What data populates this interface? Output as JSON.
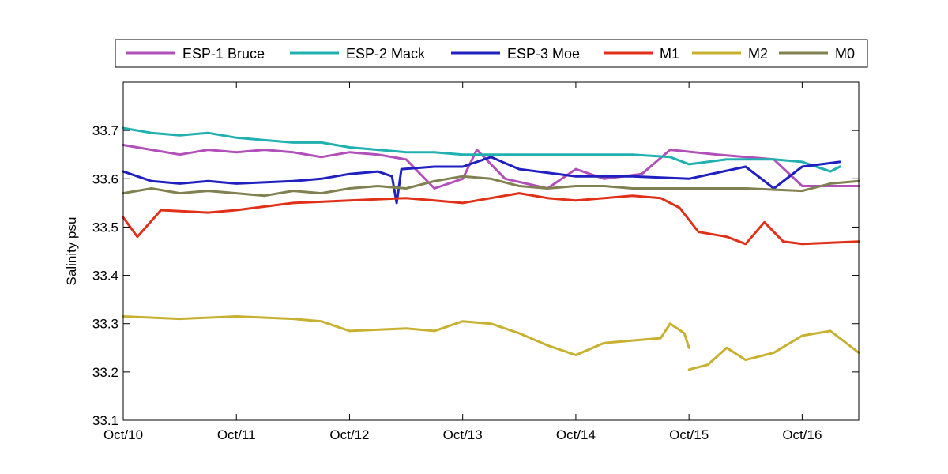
{
  "chart_data": {
    "type": "line",
    "title": "",
    "xlabel": "",
    "ylabel": "Salinity psu",
    "ylim": [
      33.1,
      33.8
    ],
    "xlim": [
      "2012-10-10 00:00",
      "2012-10-16 12:00"
    ],
    "x_ticks": [
      "Oct/10",
      "Oct/11",
      "Oct/12",
      "Oct/13",
      "Oct/14",
      "Oct/15",
      "Oct/16"
    ],
    "y_ticks": [
      33.1,
      33.2,
      33.3,
      33.4,
      33.5,
      33.6,
      33.7
    ],
    "grid": false,
    "legend": "top-outside",
    "series": [
      {
        "name": "ESP-1 Bruce",
        "color": "#b050b8",
        "points": [
          [
            "2012-10-10 00:00",
            33.67
          ],
          [
            "2012-10-10 06:00",
            33.66
          ],
          [
            "2012-10-10 12:00",
            33.65
          ],
          [
            "2012-10-10 18:00",
            33.66
          ],
          [
            "2012-10-11 00:00",
            33.655
          ],
          [
            "2012-10-11 06:00",
            33.66
          ],
          [
            "2012-10-11 12:00",
            33.655
          ],
          [
            "2012-10-11 18:00",
            33.645
          ],
          [
            "2012-10-12 00:00",
            33.655
          ],
          [
            "2012-10-12 06:00",
            33.65
          ],
          [
            "2012-10-12 12:00",
            33.64
          ],
          [
            "2012-10-12 18:00",
            33.58
          ],
          [
            "2012-10-13 00:00",
            33.6
          ],
          [
            "2012-10-13 03:00",
            33.66
          ],
          [
            "2012-10-13 09:00",
            33.6
          ],
          [
            "2012-10-13 18:00",
            33.58
          ],
          [
            "2012-10-14 00:00",
            33.62
          ],
          [
            "2012-10-14 06:00",
            33.6
          ],
          [
            "2012-10-14 14:00",
            33.61
          ],
          [
            "2012-10-14 20:00",
            33.66
          ],
          [
            "2012-10-15 06:00",
            33.65
          ],
          [
            "2012-10-15 18:00",
            33.64
          ],
          [
            "2012-10-16 00:00",
            33.585
          ],
          [
            "2012-10-16 12:00",
            33.585
          ]
        ]
      },
      {
        "name": "ESP-2 Mack",
        "color": "#20b0b0",
        "points": [
          [
            "2012-10-10 00:00",
            33.705
          ],
          [
            "2012-10-10 06:00",
            33.695
          ],
          [
            "2012-10-10 12:00",
            33.69
          ],
          [
            "2012-10-10 18:00",
            33.695
          ],
          [
            "2012-10-11 00:00",
            33.685
          ],
          [
            "2012-10-11 06:00",
            33.68
          ],
          [
            "2012-10-11 12:00",
            33.675
          ],
          [
            "2012-10-11 18:00",
            33.675
          ],
          [
            "2012-10-12 00:00",
            33.665
          ],
          [
            "2012-10-12 06:00",
            33.66
          ],
          [
            "2012-10-12 12:00",
            33.655
          ],
          [
            "2012-10-12 18:00",
            33.655
          ],
          [
            "2012-10-13 00:00",
            33.65
          ],
          [
            "2012-10-13 12:00",
            33.65
          ],
          [
            "2012-10-14 00:00",
            33.65
          ],
          [
            "2012-10-14 12:00",
            33.65
          ],
          [
            "2012-10-14 20:00",
            33.645
          ],
          [
            "2012-10-15 00:00",
            33.63
          ],
          [
            "2012-10-15 08:00",
            33.64
          ],
          [
            "2012-10-15 18:00",
            33.64
          ],
          [
            "2012-10-16 00:00",
            33.635
          ],
          [
            "2012-10-16 06:00",
            33.615
          ],
          [
            "2012-10-16 08:00",
            33.625
          ]
        ]
      },
      {
        "name": "ESP-3 Moe",
        "color": "#2020c0",
        "points": [
          [
            "2012-10-10 00:00",
            33.615
          ],
          [
            "2012-10-10 06:00",
            33.595
          ],
          [
            "2012-10-10 12:00",
            33.59
          ],
          [
            "2012-10-10 18:00",
            33.595
          ],
          [
            "2012-10-11 00:00",
            33.59
          ],
          [
            "2012-10-11 12:00",
            33.595
          ],
          [
            "2012-10-11 18:00",
            33.6
          ],
          [
            "2012-10-12 00:00",
            33.61
          ],
          [
            "2012-10-12 06:00",
            33.615
          ],
          [
            "2012-10-12 09:00",
            33.605
          ],
          [
            "2012-10-12 10:00",
            33.55
          ],
          [
            "2012-10-12 11:00",
            33.62
          ],
          [
            "2012-10-12 18:00",
            33.625
          ],
          [
            "2012-10-13 00:00",
            33.625
          ],
          [
            "2012-10-13 06:00",
            33.645
          ],
          [
            "2012-10-13 12:00",
            33.62
          ],
          [
            "2012-10-14 00:00",
            33.605
          ],
          [
            "2012-10-14 12:00",
            33.605
          ],
          [
            "2012-10-15 00:00",
            33.6
          ],
          [
            "2012-10-15 12:00",
            33.625
          ],
          [
            "2012-10-15 18:00",
            33.58
          ],
          [
            "2012-10-16 00:00",
            33.625
          ],
          [
            "2012-10-16 08:00",
            33.635
          ]
        ]
      },
      {
        "name": "M1",
        "color": "#e03018",
        "points": [
          [
            "2012-10-10 00:00",
            33.52
          ],
          [
            "2012-10-10 03:00",
            33.48
          ],
          [
            "2012-10-10 08:00",
            33.535
          ],
          [
            "2012-10-10 18:00",
            33.53
          ],
          [
            "2012-10-11 00:00",
            33.535
          ],
          [
            "2012-10-11 12:00",
            33.55
          ],
          [
            "2012-10-12 00:00",
            33.555
          ],
          [
            "2012-10-12 12:00",
            33.56
          ],
          [
            "2012-10-12 18:00",
            33.555
          ],
          [
            "2012-10-13 00:00",
            33.55
          ],
          [
            "2012-10-13 06:00",
            33.56
          ],
          [
            "2012-10-13 12:00",
            33.57
          ],
          [
            "2012-10-13 18:00",
            33.56
          ],
          [
            "2012-10-14 00:00",
            33.555
          ],
          [
            "2012-10-14 12:00",
            33.565
          ],
          [
            "2012-10-14 18:00",
            33.56
          ],
          [
            "2012-10-14 22:00",
            33.54
          ],
          [
            "2012-10-15 02:00",
            33.49
          ],
          [
            "2012-10-15 08:00",
            33.48
          ],
          [
            "2012-10-15 12:00",
            33.465
          ],
          [
            "2012-10-15 16:00",
            33.51
          ],
          [
            "2012-10-15 20:00",
            33.47
          ],
          [
            "2012-10-16 00:00",
            33.465
          ],
          [
            "2012-10-16 12:00",
            33.47
          ]
        ]
      },
      {
        "name": "M2",
        "color": "#c8b030",
        "points": [
          [
            "2012-10-10 00:00",
            33.315
          ],
          [
            "2012-10-10 12:00",
            33.31
          ],
          [
            "2012-10-11 00:00",
            33.315
          ],
          [
            "2012-10-11 12:00",
            33.31
          ],
          [
            "2012-10-11 18:00",
            33.305
          ],
          [
            "2012-10-12 00:00",
            33.285
          ],
          [
            "2012-10-12 12:00",
            33.29
          ],
          [
            "2012-10-12 18:00",
            33.285
          ],
          [
            "2012-10-13 00:00",
            33.305
          ],
          [
            "2012-10-13 06:00",
            33.3
          ],
          [
            "2012-10-13 12:00",
            33.28
          ],
          [
            "2012-10-13 18:00",
            33.255
          ],
          [
            "2012-10-14 00:00",
            33.235
          ],
          [
            "2012-10-14 06:00",
            33.26
          ],
          [
            "2012-10-14 12:00",
            33.265
          ],
          [
            "2012-10-14 18:00",
            33.27
          ],
          [
            "2012-10-14 20:00",
            33.3
          ],
          [
            "2012-10-14 23:00",
            33.28
          ],
          [
            "2012-10-15 00:00",
            33.25
          ],
          null,
          [
            "2012-10-15 00:00",
            33.205
          ],
          [
            "2012-10-15 04:00",
            33.215
          ],
          [
            "2012-10-15 08:00",
            33.25
          ],
          [
            "2012-10-15 12:00",
            33.225
          ],
          [
            "2012-10-15 18:00",
            33.24
          ],
          [
            "2012-10-16 00:00",
            33.275
          ],
          [
            "2012-10-16 06:00",
            33.285
          ],
          [
            "2012-10-16 12:00",
            33.24
          ]
        ]
      },
      {
        "name": "M0",
        "color": "#808050",
        "points": [
          [
            "2012-10-10 00:00",
            33.57
          ],
          [
            "2012-10-10 06:00",
            33.58
          ],
          [
            "2012-10-10 12:00",
            33.57
          ],
          [
            "2012-10-10 18:00",
            33.575
          ],
          [
            "2012-10-11 00:00",
            33.57
          ],
          [
            "2012-10-11 06:00",
            33.565
          ],
          [
            "2012-10-11 12:00",
            33.575
          ],
          [
            "2012-10-11 18:00",
            33.57
          ],
          [
            "2012-10-12 00:00",
            33.58
          ],
          [
            "2012-10-12 06:00",
            33.585
          ],
          [
            "2012-10-12 12:00",
            33.58
          ],
          [
            "2012-10-12 18:00",
            33.595
          ],
          [
            "2012-10-13 00:00",
            33.605
          ],
          [
            "2012-10-13 06:00",
            33.6
          ],
          [
            "2012-10-13 12:00",
            33.585
          ],
          [
            "2012-10-13 18:00",
            33.58
          ],
          [
            "2012-10-14 00:00",
            33.585
          ],
          [
            "2012-10-14 06:00",
            33.585
          ],
          [
            "2012-10-14 12:00",
            33.58
          ],
          [
            "2012-10-14 18:00",
            33.58
          ],
          [
            "2012-10-15 00:00",
            33.58
          ],
          [
            "2012-10-15 12:00",
            33.58
          ],
          [
            "2012-10-16 00:00",
            33.575
          ],
          [
            "2012-10-16 06:00",
            33.59
          ],
          [
            "2012-10-16 12:00",
            33.595
          ]
        ]
      }
    ]
  }
}
